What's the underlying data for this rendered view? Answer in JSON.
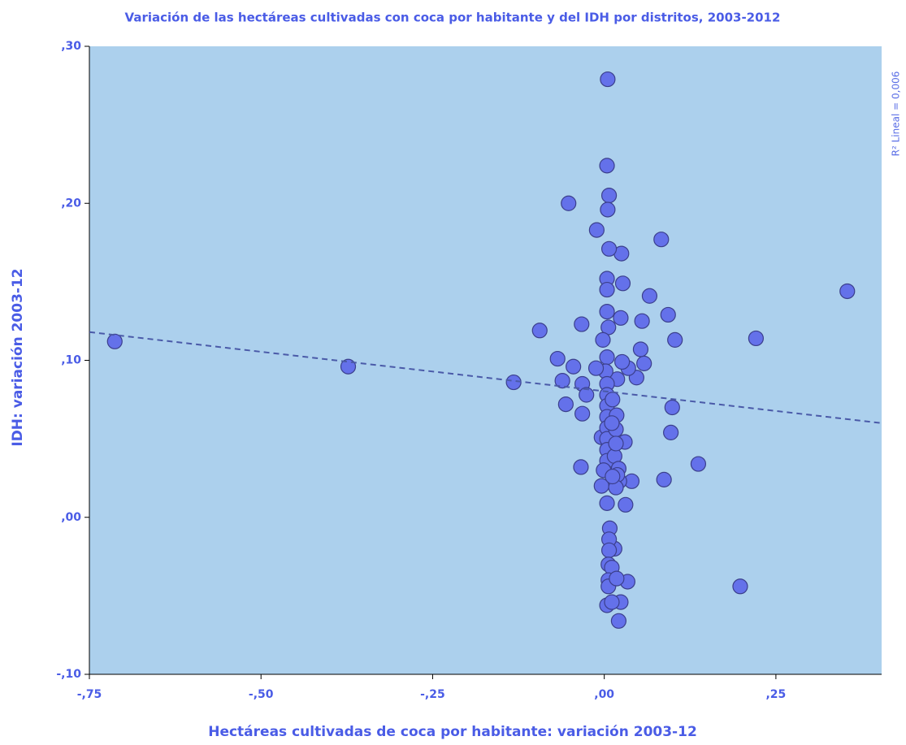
{
  "chart_data": {
    "type": "scatter",
    "title": "Variación de las hectáreas cultivadas con coca por habitante y del IDH por distritos, 2003-2012",
    "x_label": "Hectáreas cultivadas de coca por habitante: variación 2003-12",
    "y_label": "IDH: variación 2003-12",
    "annotation": "R² Lineal = 0,006",
    "color": "#6471ea",
    "background": "#acd0ed",
    "xlim": [
      -0.75,
      0.404
    ],
    "ylim": [
      -0.1,
      0.3
    ],
    "xticks": [
      {
        "value": -0.75,
        "label": "-,75"
      },
      {
        "value": -0.5,
        "label": "-,50"
      },
      {
        "value": -0.25,
        "label": "-,25"
      },
      {
        "value": 0,
        "label": ",00"
      },
      {
        "value": 0.25,
        "label": ",25"
      }
    ],
    "yticks": [
      {
        "value": -0.1,
        "label": "-,10"
      },
      {
        "value": 0,
        "label": ",00"
      },
      {
        "value": 0.1,
        "label": ",10"
      },
      {
        "value": 0.2,
        "label": ",20"
      },
      {
        "value": 0.3,
        "label": ",30"
      }
    ],
    "fit_line": {
      "x": [
        -0.75,
        0.404
      ],
      "y": [
        0.118,
        0.06
      ]
    },
    "x": [
      -0.713,
      -0.373,
      -0.132,
      0.354,
      0.221,
      0.198,
      0.137,
      0.087,
      0.083,
      0.099,
      0.103,
      0.097,
      0.093,
      0.066,
      0.058,
      0.053,
      0.055,
      0.047,
      0.035,
      0.027,
      0.025,
      0.024,
      0.026,
      0.019,
      0.03,
      0.031,
      0.034,
      0.04,
      0.024,
      0.021,
      0.015,
      0.005,
      0.004,
      0.007,
      0.005,
      0.007,
      0.004,
      0.004,
      0.004,
      0.006,
      -0.002,
      0.004,
      -0.011,
      -0.052,
      -0.094,
      -0.033,
      -0.068,
      -0.045,
      -0.061,
      -0.032,
      -0.026,
      -0.056,
      -0.032,
      -0.034,
      -0.004,
      0.002,
      0.004,
      0.004,
      0.004,
      0.004,
      0.004,
      0.004,
      0.004,
      0.004,
      -0.001,
      -0.004,
      0.004,
      0.008,
      0.007,
      0.007,
      0.006,
      0.011,
      0.006,
      0.006,
      0.004,
      0.011,
      0.018,
      0.018,
      0.017,
      0.015,
      0.021,
      0.022,
      0.019,
      0.017,
      0.012,
      0.017,
      0.011,
      0.012,
      -0.012
    ],
    "y": [
      0.112,
      0.096,
      0.086,
      0.144,
      0.114,
      -0.044,
      0.034,
      0.024,
      0.177,
      0.07,
      0.113,
      0.054,
      0.129,
      0.141,
      0.098,
      0.107,
      0.125,
      0.089,
      0.095,
      0.149,
      0.168,
      0.127,
      0.099,
      0.088,
      0.048,
      0.008,
      -0.041,
      0.023,
      -0.054,
      -0.066,
      -0.02,
      0.279,
      0.224,
      0.205,
      0.196,
      0.171,
      0.152,
      0.145,
      0.131,
      0.121,
      0.113,
      0.102,
      0.183,
      0.2,
      0.119,
      0.123,
      0.101,
      0.096,
      0.087,
      0.085,
      0.078,
      0.072,
      0.066,
      0.032,
      0.051,
      0.093,
      0.085,
      0.078,
      0.071,
      0.064,
      0.057,
      0.05,
      0.043,
      0.036,
      0.03,
      0.02,
      0.009,
      -0.007,
      -0.014,
      -0.021,
      -0.03,
      -0.032,
      -0.04,
      -0.044,
      -0.056,
      -0.054,
      -0.039,
      0.065,
      0.056,
      0.039,
      0.031,
      0.023,
      0.027,
      0.019,
      0.026,
      0.047,
      0.06,
      0.075,
      0.095
    ]
  }
}
